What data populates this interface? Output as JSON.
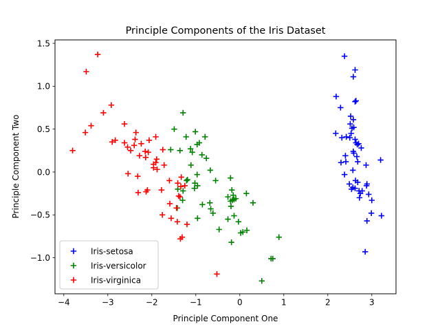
{
  "chart_data": {
    "type": "scatter",
    "title": "Principle Components of the Iris Dataset",
    "xlabel": "Principle Component One",
    "ylabel": "Principle Component Two",
    "xlim": [
      -4.2,
      3.55
    ],
    "ylim": [
      -1.42,
      1.54
    ],
    "xticks": [
      -4,
      -3,
      -2,
      -1,
      0,
      1,
      2,
      3
    ],
    "yticks": [
      -1.0,
      -0.5,
      0.0,
      0.5,
      1.0,
      1.5
    ],
    "xtick_labels": [
      "−4",
      "−3",
      "−2",
      "−1",
      "0",
      "1",
      "2",
      "3"
    ],
    "ytick_labels": [
      "−1.0",
      "−0.5",
      "0.0",
      "0.5",
      "1.0",
      "1.5"
    ],
    "grid": false,
    "legend_position": "lower-left",
    "marker": "+",
    "series": [
      {
        "name": "Iris-setosa",
        "color": "#0000ff",
        "points": [
          [
            2.38,
            1.35
          ],
          [
            2.62,
            1.19
          ],
          [
            2.58,
            1.11
          ],
          [
            2.62,
            0.82
          ],
          [
            2.64,
            0.83
          ],
          [
            2.19,
            0.88
          ],
          [
            2.29,
            0.75
          ],
          [
            2.52,
            0.65
          ],
          [
            2.58,
            0.61
          ],
          [
            2.51,
            0.56
          ],
          [
            2.55,
            0.51
          ],
          [
            2.59,
            0.52
          ],
          [
            2.53,
            0.45
          ],
          [
            2.18,
            0.45
          ],
          [
            2.32,
            0.4
          ],
          [
            2.42,
            0.41
          ],
          [
            2.5,
            0.4
          ],
          [
            2.62,
            0.38
          ],
          [
            2.67,
            0.32
          ],
          [
            2.7,
            0.33
          ],
          [
            2.64,
            0.34
          ],
          [
            2.76,
            0.28
          ],
          [
            2.58,
            0.24
          ],
          [
            2.59,
            0.22
          ],
          [
            2.66,
            0.18
          ],
          [
            2.4,
            0.19
          ],
          [
            2.41,
            0.12
          ],
          [
            2.3,
            0.11
          ],
          [
            2.68,
            0.12
          ],
          [
            2.87,
            0.08
          ],
          [
            3.2,
            0.14
          ],
          [
            2.57,
            0.02
          ],
          [
            2.38,
            -0.03
          ],
          [
            2.63,
            -0.1
          ],
          [
            2.68,
            -0.12
          ],
          [
            2.89,
            -0.14
          ],
          [
            2.49,
            -0.14
          ],
          [
            2.57,
            -0.18
          ],
          [
            2.62,
            -0.19
          ],
          [
            2.54,
            -0.2
          ],
          [
            2.71,
            -0.22
          ],
          [
            2.78,
            -0.22
          ],
          [
            2.74,
            -0.25
          ],
          [
            2.88,
            -0.16
          ],
          [
            2.72,
            -0.3
          ],
          [
            3.0,
            -0.33
          ],
          [
            2.93,
            -0.26
          ],
          [
            2.99,
            -0.48
          ],
          [
            3.22,
            -0.51
          ],
          [
            2.89,
            -0.57
          ],
          [
            2.85,
            -0.93
          ]
        ]
      },
      {
        "name": "Iris-versicolor",
        "color": "#008000",
        "points": [
          [
            -1.29,
            0.69
          ],
          [
            -1.01,
            0.47
          ],
          [
            -1.49,
            0.5
          ],
          [
            -1.22,
            0.41
          ],
          [
            -0.79,
            0.41
          ],
          [
            -0.92,
            0.34
          ],
          [
            -0.97,
            0.32
          ],
          [
            -1.12,
            0.27
          ],
          [
            -1.57,
            0.26
          ],
          [
            -1.36,
            0.25
          ],
          [
            -0.86,
            0.2
          ],
          [
            -1.08,
            0.23
          ],
          [
            -0.76,
            0.16
          ],
          [
            -1.11,
            0.08
          ],
          [
            -0.67,
            0.02
          ],
          [
            -0.97,
            -0.03
          ],
          [
            -1.21,
            -0.1
          ],
          [
            -1.19,
            -0.09
          ],
          [
            -0.21,
            -0.07
          ],
          [
            -1.02,
            -0.13
          ],
          [
            -0.96,
            -0.16
          ],
          [
            -1.03,
            -0.19
          ],
          [
            -1.41,
            -0.2
          ],
          [
            -1.29,
            -0.22
          ],
          [
            -0.55,
            -0.1
          ],
          [
            -0.18,
            -0.21
          ],
          [
            -0.15,
            -0.27
          ],
          [
            -0.13,
            -0.32
          ],
          [
            -0.27,
            -0.29
          ],
          [
            -0.17,
            -0.33
          ],
          [
            -0.21,
            -0.34
          ],
          [
            -0.09,
            -0.31
          ],
          [
            -0.68,
            -0.36
          ],
          [
            -0.85,
            -0.38
          ],
          [
            -0.2,
            -0.4
          ],
          [
            0.15,
            -0.25
          ],
          [
            0.3,
            -0.36
          ],
          [
            -1.3,
            -0.33
          ],
          [
            -1.42,
            -0.42
          ],
          [
            -0.66,
            -0.43
          ],
          [
            -0.61,
            -0.48
          ],
          [
            -0.13,
            -0.51
          ],
          [
            -0.27,
            -0.55
          ],
          [
            -0.96,
            -0.54
          ],
          [
            -0.03,
            -0.58
          ],
          [
            -0.47,
            -0.67
          ],
          [
            0.02,
            -0.71
          ],
          [
            0.07,
            -0.7
          ],
          [
            0.16,
            -0.68
          ],
          [
            -0.19,
            -0.82
          ],
          [
            0.89,
            -0.76
          ],
          [
            0.71,
            -1.01
          ],
          [
            0.75,
            -1.01
          ],
          [
            0.5,
            -1.27
          ]
        ]
      },
      {
        "name": "Iris-virginica",
        "color": "#ff0000",
        "points": [
          [
            -3.23,
            1.37
          ],
          [
            -3.49,
            1.17
          ],
          [
            -2.92,
            0.78
          ],
          [
            -3.1,
            0.69
          ],
          [
            -2.62,
            0.56
          ],
          [
            -3.38,
            0.54
          ],
          [
            -3.51,
            0.46
          ],
          [
            -2.36,
            0.46
          ],
          [
            -2.38,
            0.38
          ],
          [
            -2.9,
            0.35
          ],
          [
            -2.83,
            0.37
          ],
          [
            -2.62,
            0.34
          ],
          [
            -2.4,
            0.31
          ],
          [
            -2.24,
            0.33
          ],
          [
            -2.06,
            0.37
          ],
          [
            -2.55,
            0.29
          ],
          [
            -1.91,
            0.41
          ],
          [
            -2.15,
            0.24
          ],
          [
            -2.08,
            0.23
          ],
          [
            -1.75,
            0.26
          ],
          [
            -2.48,
            0.25
          ],
          [
            -3.8,
            0.25
          ],
          [
            -2.28,
            0.19
          ],
          [
            -2.14,
            0.17
          ],
          [
            -1.89,
            0.15
          ],
          [
            -1.91,
            0.11
          ],
          [
            -1.96,
            0.09
          ],
          [
            -1.72,
            0.08
          ],
          [
            -1.96,
            0.05
          ],
          [
            -1.88,
            0.03
          ],
          [
            -2.54,
            -0.02
          ],
          [
            -2.32,
            -0.05
          ],
          [
            -1.6,
            -0.1
          ],
          [
            -1.33,
            -0.06
          ],
          [
            -1.41,
            -0.13
          ],
          [
            -1.34,
            -0.17
          ],
          [
            -1.25,
            -0.16
          ],
          [
            -1.78,
            -0.21
          ],
          [
            -2.1,
            -0.21
          ],
          [
            -2.13,
            -0.23
          ],
          [
            -2.31,
            -0.24
          ],
          [
            -1.39,
            -0.28
          ],
          [
            -1.36,
            -0.29
          ],
          [
            -1.59,
            -0.37
          ],
          [
            -1.44,
            -0.42
          ],
          [
            -1.76,
            -0.5
          ],
          [
            -1.56,
            -0.54
          ],
          [
            -1.42,
            -0.58
          ],
          [
            -1.2,
            -0.61
          ],
          [
            -1.31,
            -0.76
          ],
          [
            -1.35,
            -0.78
          ],
          [
            -0.52,
            -1.19
          ]
        ]
      }
    ]
  }
}
